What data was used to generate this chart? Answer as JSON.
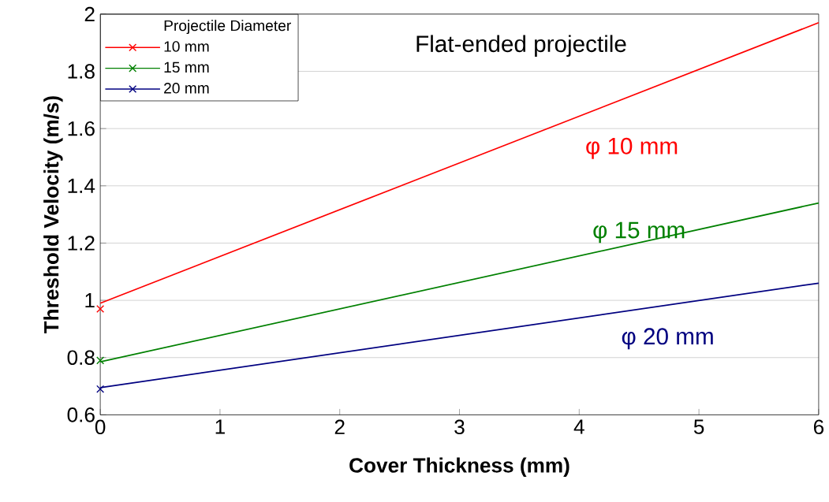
{
  "chart_data": {
    "type": "line",
    "xlabel": "Cover Thickness (mm)",
    "ylabel": "Threshold Velocity (m/s)",
    "legend_title": "Projectile Diameter",
    "legend": "top left",
    "grid": "y",
    "x": [
      0,
      6
    ],
    "xlim": [
      0,
      6
    ],
    "xticks": [
      0,
      1,
      2,
      3,
      4,
      5,
      6
    ],
    "ylim": [
      0.6,
      2
    ],
    "yticks": [
      0.6,
      0.8,
      1,
      1.2,
      1.4,
      1.6,
      1.8,
      2
    ],
    "series": [
      {
        "color": "#ff0000",
        "values": [
          0.99,
          1.97
        ],
        "marker": "none"
      },
      {
        "color": "#008000",
        "values": [
          0.785,
          1.34
        ],
        "marker": "none"
      },
      {
        "color": "#000080",
        "values": [
          0.695,
          1.06
        ],
        "marker": "none"
      },
      {
        "type": "scatter",
        "name": "10 mm",
        "color": "#ff0000",
        "values": [
          0.97,
          null
        ],
        "marker": "cross"
      },
      {
        "type": "scatter",
        "name": "15 mm",
        "color": "#008000",
        "values": [
          0.79,
          null
        ],
        "marker": "cross"
      },
      {
        "type": "scatter",
        "name": "20 mm",
        "color": "#000080",
        "values": [
          0.69,
          null
        ],
        "marker": "cross"
      }
    ],
    "annotations": [
      "φ 10 mm",
      "φ 15 mm",
      "φ 20 mm",
      "Flat-ended projectile"
    ]
  }
}
